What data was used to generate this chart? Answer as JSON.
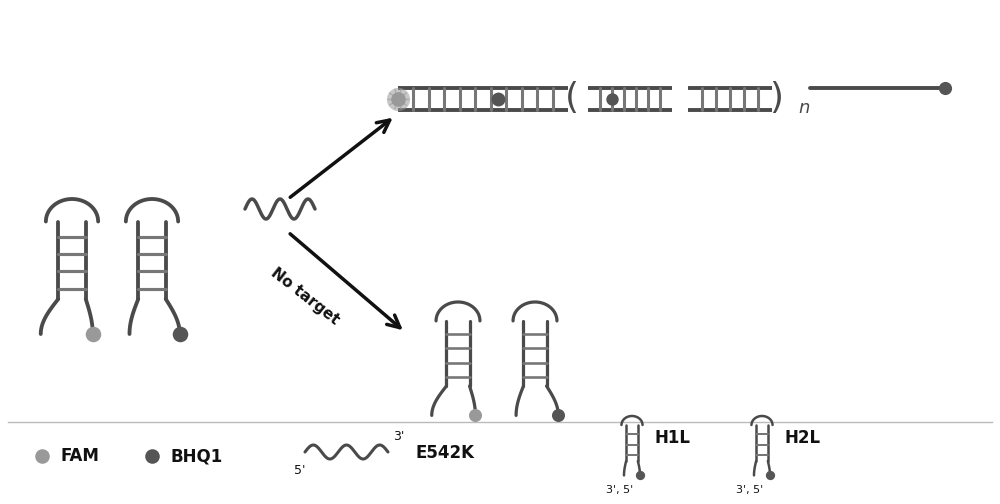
{
  "bg_color": "#ffffff",
  "gray_dark": "#4a4a4a",
  "gray_mid": "#777777",
  "gray_light": "#aaaaaa",
  "fam_color": "#999999",
  "bhq_color": "#555555",
  "arrow_color": "#111111",
  "text_color": "#111111",
  "no_target_text": "No target",
  "n_label": "n",
  "fam_label": "FAM",
  "bhq_label": "BHQ1",
  "e542k_label": "E542K",
  "h1l_label": "H1L",
  "h2l_label": "H2L",
  "label_3prime": "3'",
  "label_5prime": "5'"
}
